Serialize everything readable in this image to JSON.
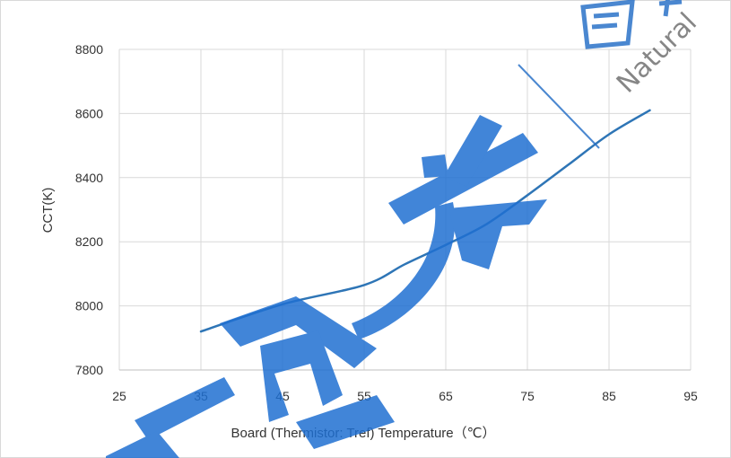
{
  "chart_data": {
    "type": "line",
    "title": "",
    "xlabel": "Board (Thermistor: Tref) Temperature（℃）",
    "ylabel": "CCT(K)",
    "xlim": [
      25,
      95
    ],
    "ylim": [
      7800,
      8800
    ],
    "x_ticks": [
      25,
      35,
      45,
      55,
      65,
      75,
      85,
      95
    ],
    "x_tick_labels": [
      "25",
      "35",
      "45",
      "55",
      "65",
      "75",
      "85",
      "95"
    ],
    "y_ticks": [
      7800,
      8000,
      8200,
      8400,
      8600,
      8800
    ],
    "y_tick_labels": [
      "7800",
      "8000",
      "8200",
      "8400",
      "8600",
      "8800"
    ],
    "grid": true,
    "legend": "none",
    "series": [
      {
        "color": "#2e75b6",
        "x": [
          35,
          45,
          55,
          60,
          65,
          70,
          75,
          80,
          85,
          90
        ],
        "y": [
          7920,
          8005,
          8065,
          8130,
          8190,
          8255,
          8345,
          8440,
          8535,
          8610
        ]
      }
    ]
  },
  "watermark": {
    "text_cn": "自",
    "text_en": "Natural",
    "text_cn_2": "一同一方"
  }
}
